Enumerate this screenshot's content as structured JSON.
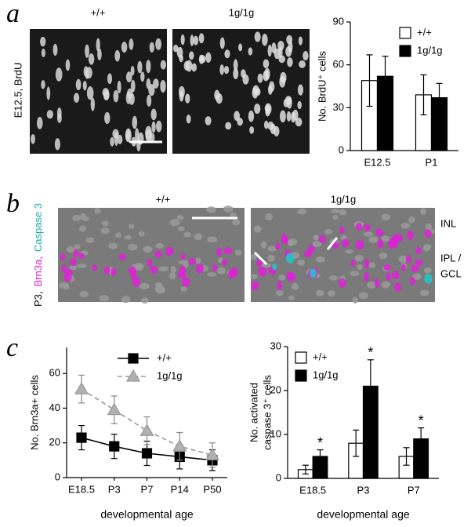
{
  "panel_labels": [
    "a",
    "b",
    "c"
  ],
  "panel_a_images": {
    "genotypes": [
      "+/+",
      "1g/1g"
    ],
    "side_label": "E12.5,  BrdU"
  },
  "panel_b_images": {
    "genotypes": [
      "+/+",
      "1g/1g"
    ],
    "side_label": [
      {
        "text": "P3,",
        "color": "#000000"
      },
      {
        "text": "Brn3a,",
        "color": "#e020c8"
      },
      {
        "text": "Caspase 3",
        "color": "#20a8a8"
      }
    ],
    "layers": [
      "INL",
      "IPL /",
      "GCL"
    ]
  },
  "chart_data": [
    {
      "type": "bar",
      "ylabel": [
        "No. BrdU⁺ cells"
      ],
      "categories": [
        "E12.5",
        "P1"
      ],
      "series": [
        {
          "name": "+/+",
          "color": "#ffffff",
          "values": [
            49,
            39
          ],
          "errors": [
            18,
            14
          ]
        },
        {
          "name": "1g/1g",
          "color": "#000000",
          "values": [
            52,
            37
          ],
          "errors": [
            14,
            10
          ]
        }
      ],
      "ylim": [
        0,
        90
      ],
      "yticks": [
        0,
        30,
        60,
        90
      ],
      "legend": "upper right"
    },
    {
      "type": "line",
      "ylabel": [
        "No. Brn3a+ cells"
      ],
      "xlabel": "developmental age",
      "categories": [
        "E18.5",
        "P3",
        "P7",
        "P14",
        "P50"
      ],
      "series": [
        {
          "name": "+/+",
          "color": "#000000",
          "marker": "square",
          "line_style": "solid",
          "values": [
            23,
            18,
            14,
            12,
            10
          ],
          "errors": [
            7,
            7,
            7,
            7,
            6
          ]
        },
        {
          "name": "1g/1g",
          "color": "#999999",
          "marker": "triangle",
          "line_style": "dashed",
          "values": [
            51,
            39,
            27,
            18,
            13
          ],
          "errors": [
            8,
            8,
            8,
            8,
            7
          ]
        }
      ],
      "ylim": [
        0,
        75
      ],
      "yticks": [
        0,
        20,
        40,
        60
      ],
      "legend": "upper right"
    },
    {
      "type": "bar",
      "ylabel": [
        "No. activated",
        "caspase 3⁺ cells"
      ],
      "xlabel": "developmental age",
      "categories": [
        "E18.5",
        "P3",
        "P7"
      ],
      "series": [
        {
          "name": "+/+",
          "color": "#ffffff",
          "values": [
            2,
            8,
            5
          ],
          "errors": [
            1,
            3,
            2
          ]
        },
        {
          "name": "1g/1g",
          "color": "#000000",
          "values": [
            5,
            21,
            9
          ],
          "errors": [
            1.5,
            6,
            2.5
          ]
        }
      ],
      "significance": [
        "*",
        "*",
        "*"
      ],
      "ylim": [
        0,
        30
      ],
      "yticks": [
        0,
        10,
        20,
        30
      ],
      "legend": "upper left"
    }
  ]
}
